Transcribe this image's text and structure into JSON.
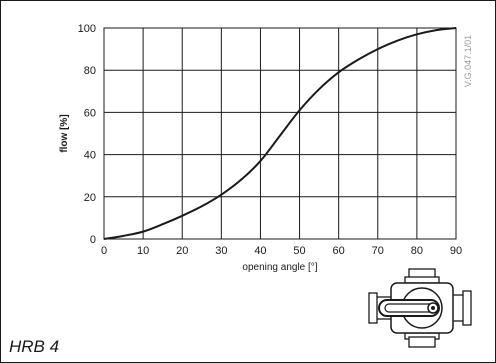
{
  "chart_data": {
    "type": "line",
    "title": "",
    "xlabel": "opening angle [°]",
    "ylabel": "flow [%]",
    "xlim": [
      0,
      90
    ],
    "ylim": [
      0,
      100
    ],
    "xticks": [
      0,
      10,
      20,
      30,
      40,
      50,
      60,
      70,
      80,
      90
    ],
    "yticks": [
      0,
      20,
      40,
      60,
      80,
      100
    ],
    "grid": true,
    "legend": "none",
    "line_color": "#1a1a1a",
    "grid_color": "#1a1a1a",
    "series": [
      {
        "x": [
          0,
          5,
          10,
          15,
          20,
          25,
          30,
          35,
          40,
          45,
          50,
          55,
          60,
          65,
          70,
          75,
          80,
          85,
          90
        ],
        "values": [
          0,
          1.5,
          3.5,
          7,
          11,
          15.5,
          21,
          28,
          37,
          49,
          61,
          71,
          79,
          85,
          90,
          94,
          97,
          99,
          100
        ]
      }
    ]
  },
  "reference_code": "V.G.047.1/01",
  "caption": "HRB 4",
  "icon": "three-way-valve-icon"
}
